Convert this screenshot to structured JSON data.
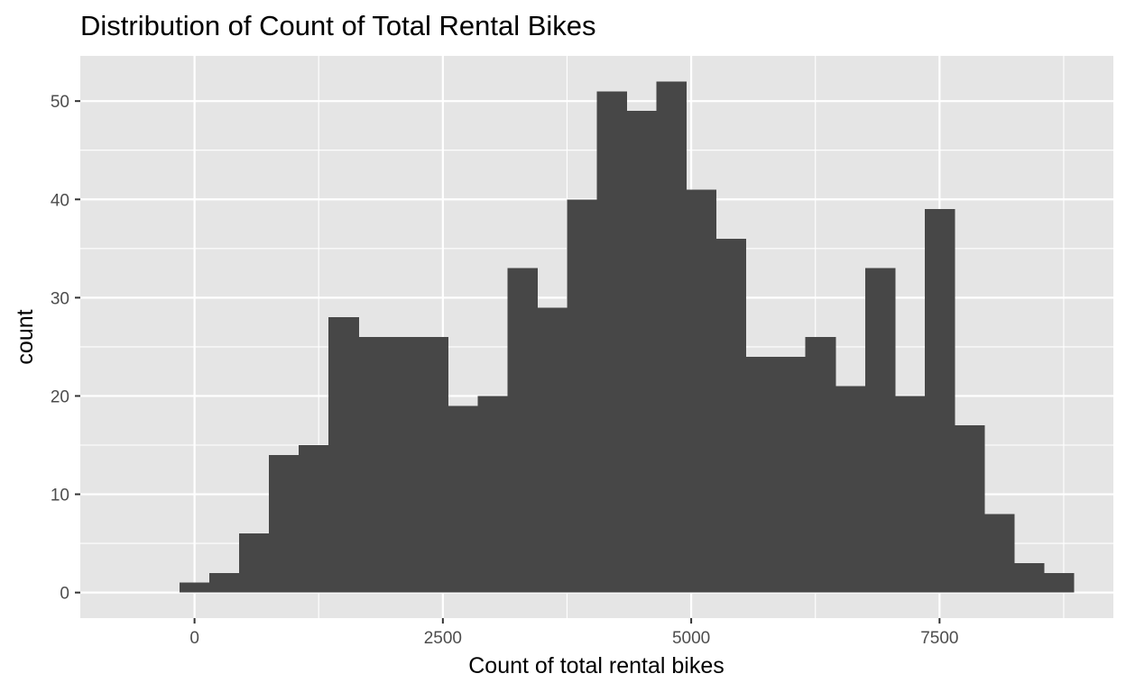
{
  "chart_data": {
    "type": "histogram",
    "title": "Distribution of Count of Total Rental Bikes",
    "xlabel": "Count of total rental bikes",
    "ylabel": "count",
    "bin_width": 300,
    "bin_start": -150,
    "counts": [
      1,
      2,
      6,
      14,
      15,
      28,
      26,
      26,
      26,
      19,
      20,
      33,
      29,
      40,
      51,
      49,
      52,
      41,
      36,
      24,
      24,
      26,
      21,
      33,
      20,
      39,
      17,
      8,
      3,
      2
    ],
    "xlim": [
      -1150,
      9250
    ],
    "ylim": [
      -2.6,
      54.6
    ],
    "x_ticks": [
      0,
      2500,
      5000,
      7500
    ],
    "x_tick_labels": [
      "0",
      "2500",
      "5000",
      "7500"
    ],
    "y_ticks": [
      0,
      10,
      20,
      30,
      40,
      50
    ],
    "y_tick_labels": [
      "0",
      "10",
      "20",
      "30",
      "40",
      "50"
    ],
    "grid": true,
    "panel_background": "#e5e5e5",
    "grid_color": "#ffffff",
    "bar_fill": "#474747"
  }
}
